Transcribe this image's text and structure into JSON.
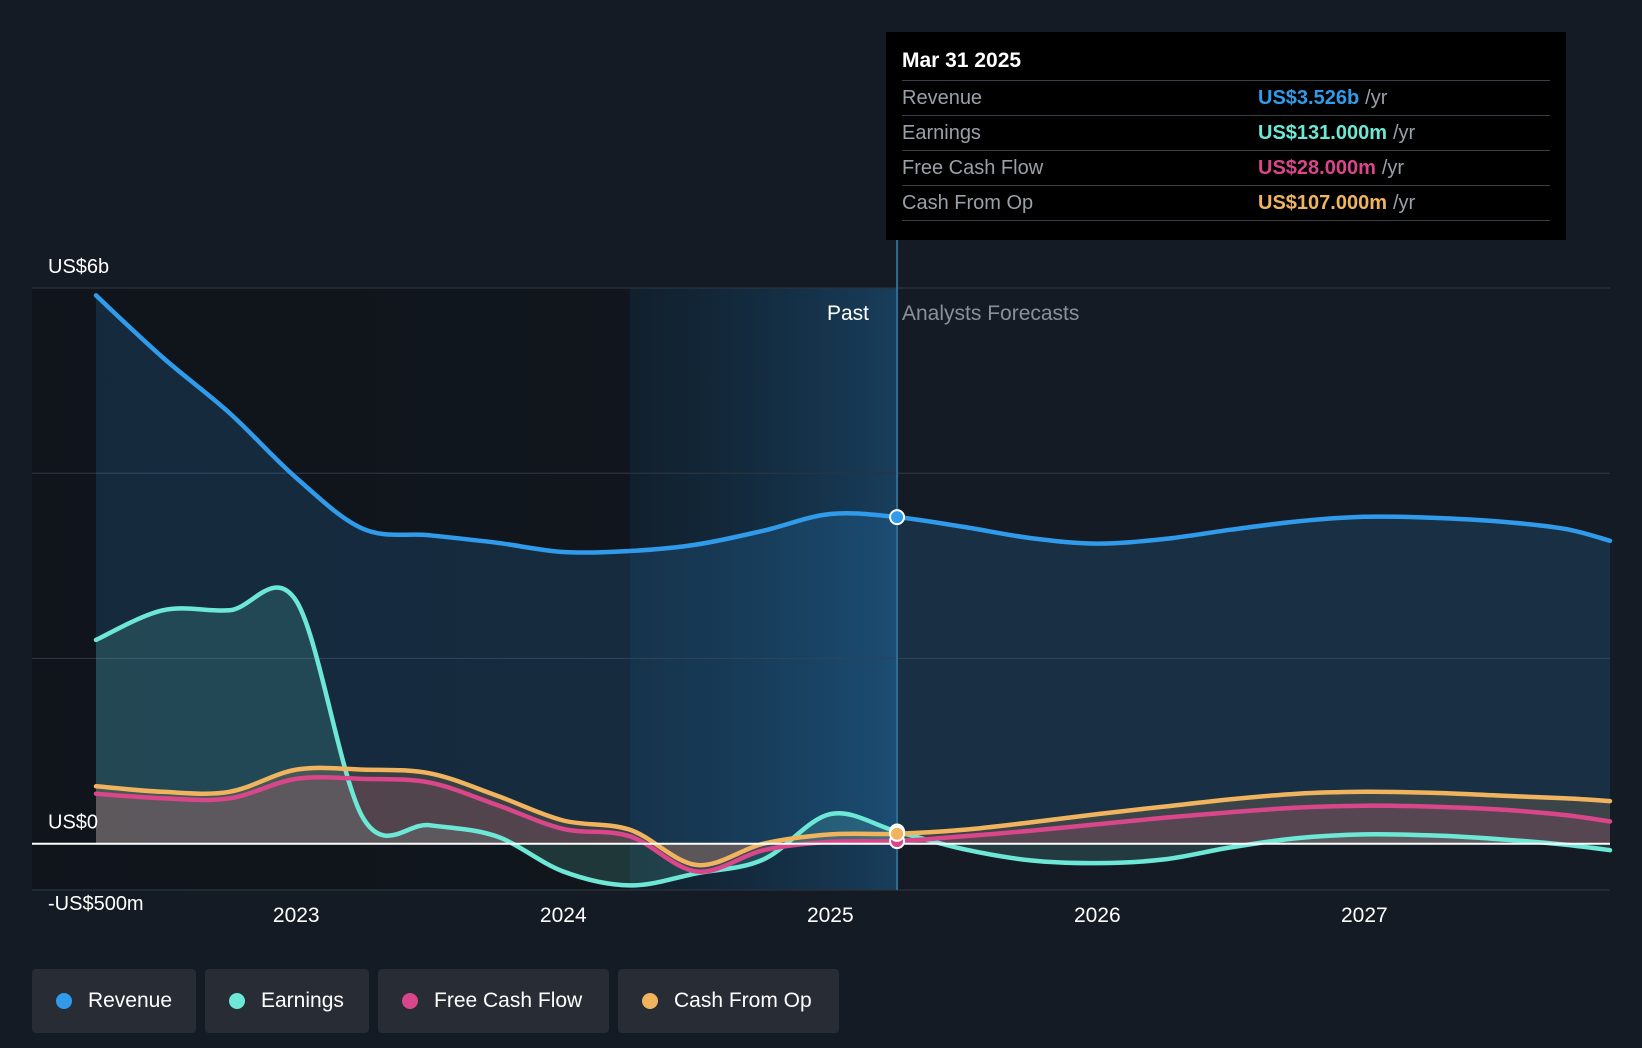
{
  "tooltip": {
    "date": "Mar 31 2025",
    "rows": [
      {
        "label": "Revenue",
        "value": "US$3.526b",
        "unit": "/yr",
        "color": "#2f9bea"
      },
      {
        "label": "Earnings",
        "value": "US$131.000m",
        "unit": "/yr",
        "color": "#6ee8d6"
      },
      {
        "label": "Free Cash Flow",
        "value": "US$28.000m",
        "unit": "/yr",
        "color": "#d9468a"
      },
      {
        "label": "Cash From Op",
        "value": "US$107.000m",
        "unit": "/yr",
        "color": "#f0b45e"
      }
    ]
  },
  "past_label": "Past",
  "forecast_label": "Analysts Forecasts",
  "legend": [
    {
      "label": "Revenue",
      "color": "#2f9bea"
    },
    {
      "label": "Earnings",
      "color": "#6ee8d6"
    },
    {
      "label": "Free Cash Flow",
      "color": "#d9468a"
    },
    {
      "label": "Cash From Op",
      "color": "#f0b45e"
    }
  ],
  "chart_data": {
    "type": "line",
    "y_tick_labels": [
      {
        "value": 6000,
        "label": "US$6b"
      },
      {
        "value": 0,
        "label": "US$0"
      },
      {
        "value": -500,
        "label": "-US$500m"
      }
    ],
    "gridlines": [
      6000,
      4000,
      2000
    ],
    "ylim": [
      -500,
      6000
    ],
    "xlim": [
      2022.25,
      2027.92
    ],
    "x_ticks": [
      2023,
      2024,
      2025,
      2026,
      2027
    ],
    "x_tick_labels": [
      "2023",
      "2024",
      "2025",
      "2026",
      "2027"
    ],
    "highlight_range": [
      2024.25,
      2025.25
    ],
    "past_forecast_split": 2025.25,
    "series": [
      {
        "name": "Revenue",
        "color": "#2f9bea",
        "points": [
          [
            2022.25,
            5920
          ],
          [
            2022.5,
            5250
          ],
          [
            2022.75,
            4650
          ],
          [
            2023.0,
            3950
          ],
          [
            2023.25,
            3400
          ],
          [
            2023.5,
            3330
          ],
          [
            2023.75,
            3250
          ],
          [
            2024.0,
            3150
          ],
          [
            2024.25,
            3160
          ],
          [
            2024.5,
            3230
          ],
          [
            2024.75,
            3380
          ],
          [
            2025.0,
            3560
          ],
          [
            2025.25,
            3526
          ],
          [
            2025.5,
            3420
          ],
          [
            2025.75,
            3300
          ],
          [
            2026.0,
            3240
          ],
          [
            2026.25,
            3290
          ],
          [
            2026.5,
            3390
          ],
          [
            2026.75,
            3480
          ],
          [
            2027.0,
            3530
          ],
          [
            2027.25,
            3520
          ],
          [
            2027.5,
            3480
          ],
          [
            2027.75,
            3400
          ],
          [
            2027.92,
            3270
          ]
        ]
      },
      {
        "name": "Earnings",
        "color": "#6ee8d6",
        "points": [
          [
            2022.25,
            2200
          ],
          [
            2022.5,
            2520
          ],
          [
            2022.75,
            2520
          ],
          [
            2023.0,
            2620
          ],
          [
            2023.25,
            280
          ],
          [
            2023.5,
            200
          ],
          [
            2023.75,
            80
          ],
          [
            2024.0,
            -300
          ],
          [
            2024.25,
            -450
          ],
          [
            2024.5,
            -320
          ],
          [
            2024.75,
            -170
          ],
          [
            2025.0,
            320
          ],
          [
            2025.25,
            131
          ],
          [
            2025.5,
            -60
          ],
          [
            2025.75,
            -180
          ],
          [
            2026.0,
            -210
          ],
          [
            2026.25,
            -170
          ],
          [
            2026.5,
            -40
          ],
          [
            2026.75,
            60
          ],
          [
            2027.0,
            100
          ],
          [
            2027.25,
            90
          ],
          [
            2027.5,
            50
          ],
          [
            2027.75,
            -10
          ],
          [
            2027.92,
            -70
          ]
        ]
      },
      {
        "name": "Free Cash Flow",
        "color": "#d9468a",
        "points": [
          [
            2022.25,
            540
          ],
          [
            2022.5,
            490
          ],
          [
            2022.75,
            490
          ],
          [
            2023.0,
            700
          ],
          [
            2023.25,
            700
          ],
          [
            2023.5,
            660
          ],
          [
            2023.75,
            420
          ],
          [
            2024.0,
            160
          ],
          [
            2024.25,
            80
          ],
          [
            2024.5,
            -300
          ],
          [
            2024.75,
            -70
          ],
          [
            2025.0,
            20
          ],
          [
            2025.25,
            28
          ],
          [
            2025.5,
            80
          ],
          [
            2025.75,
            140
          ],
          [
            2026.0,
            210
          ],
          [
            2026.25,
            280
          ],
          [
            2026.5,
            340
          ],
          [
            2026.75,
            390
          ],
          [
            2027.0,
            410
          ],
          [
            2027.25,
            400
          ],
          [
            2027.5,
            370
          ],
          [
            2027.75,
            310
          ],
          [
            2027.92,
            240
          ]
        ]
      },
      {
        "name": "Cash From Op",
        "color": "#f0b45e",
        "points": [
          [
            2022.25,
            620
          ],
          [
            2022.5,
            560
          ],
          [
            2022.75,
            560
          ],
          [
            2023.0,
            800
          ],
          [
            2023.25,
            800
          ],
          [
            2023.5,
            760
          ],
          [
            2023.75,
            520
          ],
          [
            2024.0,
            250
          ],
          [
            2024.25,
            150
          ],
          [
            2024.5,
            -230
          ],
          [
            2024.75,
            0
          ],
          [
            2025.0,
            100
          ],
          [
            2025.25,
            107
          ],
          [
            2025.5,
            150
          ],
          [
            2025.75,
            230
          ],
          [
            2026.0,
            320
          ],
          [
            2026.25,
            400
          ],
          [
            2026.5,
            480
          ],
          [
            2026.75,
            540
          ],
          [
            2027.0,
            560
          ],
          [
            2027.25,
            550
          ],
          [
            2027.5,
            520
          ],
          [
            2027.75,
            490
          ],
          [
            2027.92,
            460
          ]
        ]
      }
    ]
  }
}
